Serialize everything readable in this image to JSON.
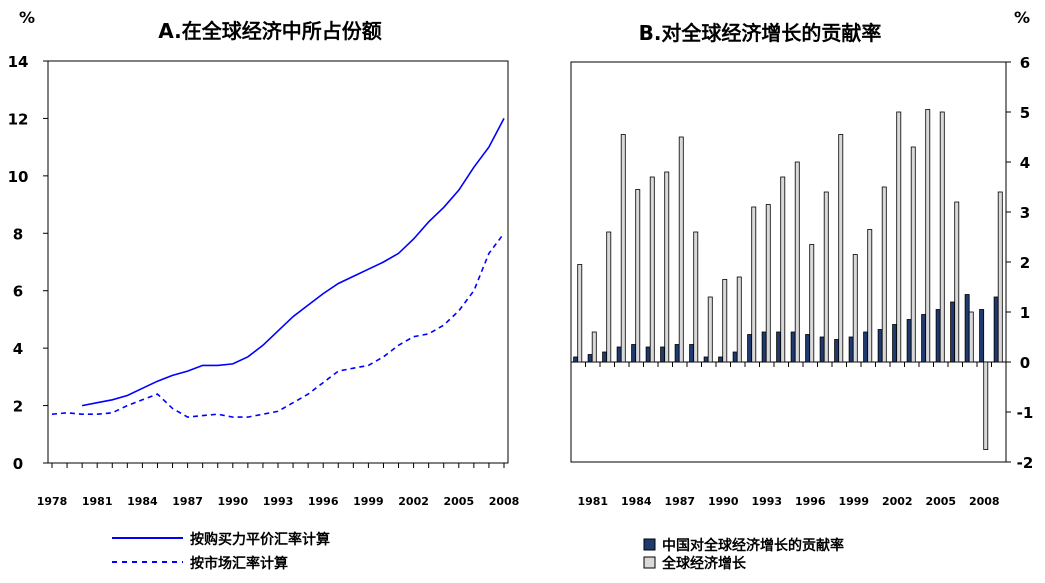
{
  "chart_data": [
    {
      "type": "line",
      "title": "A.在全球经济中所占份额",
      "ylabel": "%",
      "ylim": [
        0,
        14
      ],
      "yticks": [
        "0",
        "2",
        "4",
        "6",
        "8",
        "10",
        "12",
        "14"
      ],
      "xlim": [
        1978,
        2008
      ],
      "xticks": [
        "1978",
        "1981",
        "1984",
        "1987",
        "1990",
        "1993",
        "1996",
        "1999",
        "2002",
        "2005",
        "2008"
      ],
      "series": [
        {
          "name": "按购买力平价汇率计算",
          "style": "solid",
          "color": "#0000ff",
          "x": [
            1980,
            1981,
            1982,
            1983,
            1984,
            1985,
            1986,
            1987,
            1988,
            1989,
            1990,
            1991,
            1992,
            1993,
            1994,
            1995,
            1996,
            1997,
            1998,
            1999,
            2000,
            2001,
            2002,
            2003,
            2004,
            2005,
            2006,
            2007,
            2008
          ],
          "y": [
            2.0,
            2.1,
            2.2,
            2.35,
            2.6,
            2.85,
            3.05,
            3.2,
            3.4,
            3.4,
            3.45,
            3.7,
            4.1,
            4.6,
            5.1,
            5.5,
            5.9,
            6.25,
            6.5,
            6.75,
            7.0,
            7.3,
            7.8,
            8.4,
            8.9,
            9.5,
            10.3,
            11.0,
            12.0
          ]
        },
        {
          "name": "按市场汇率计算",
          "style": "dashed",
          "color": "#0000ff",
          "x": [
            1978,
            1979,
            1980,
            1981,
            1982,
            1983,
            1984,
            1985,
            1986,
            1987,
            1988,
            1989,
            1990,
            1991,
            1992,
            1993,
            1994,
            1995,
            1996,
            1997,
            1998,
            1999,
            2000,
            2001,
            2002,
            2003,
            2004,
            2005,
            2006,
            2007,
            2008
          ],
          "y": [
            1.7,
            1.75,
            1.7,
            1.7,
            1.75,
            2.0,
            2.2,
            2.4,
            1.9,
            1.6,
            1.65,
            1.7,
            1.6,
            1.6,
            1.7,
            1.8,
            2.1,
            2.4,
            2.8,
            3.2,
            3.3,
            3.4,
            3.7,
            4.1,
            4.4,
            4.5,
            4.8,
            5.3,
            6.0,
            7.3,
            8.0
          ]
        }
      ]
    },
    {
      "type": "bar",
      "title": "B.对全球经济增长的贡献率",
      "ylabel": "%",
      "ylim": [
        -2,
        6
      ],
      "yticks": [
        "6",
        "5",
        "4",
        "3",
        "2",
        "1",
        "0",
        "-1",
        "-2"
      ],
      "xticks": [
        "1981",
        "1984",
        "1987",
        "1990",
        "1993",
        "1996",
        "1999",
        "2002",
        "2005",
        "2008"
      ],
      "categories": [
        1980,
        1981,
        1982,
        1983,
        1984,
        1985,
        1986,
        1987,
        1988,
        1989,
        1990,
        1991,
        1992,
        1993,
        1994,
        1995,
        1996,
        1997,
        1998,
        1999,
        2000,
        2001,
        2002,
        2003,
        2004,
        2005,
        2006,
        2007,
        2008,
        2009
      ],
      "series": [
        {
          "name": "中国对全球经济增长的贡献率",
          "color": "#1f3a6e",
          "values": [
            0.1,
            0.15,
            0.2,
            0.3,
            0.35,
            0.3,
            0.3,
            0.35,
            0.35,
            0.1,
            0.1,
            0.2,
            0.55,
            0.6,
            0.6,
            0.6,
            0.55,
            0.5,
            0.45,
            0.5,
            0.6,
            0.65,
            0.75,
            0.85,
            0.95,
            1.05,
            1.2,
            1.35,
            1.05,
            1.3
          ]
        },
        {
          "name": "全球经济增长",
          "color": "#d9d9d9",
          "values": [
            1.95,
            0.6,
            2.6,
            4.55,
            3.45,
            3.7,
            3.8,
            4.5,
            2.6,
            1.3,
            1.65,
            1.7,
            3.1,
            3.15,
            3.7,
            4.0,
            2.35,
            3.4,
            4.55,
            2.15,
            2.65,
            3.5,
            5.0,
            4.3,
            5.05,
            5.0,
            3.2,
            1.0,
            -1.75,
            3.4
          ]
        }
      ]
    }
  ],
  "panelA": {
    "unit": "%",
    "title": "A.在全球经济中所占份额",
    "legend": [
      "按购买力平价汇率计算",
      "按市场汇率计算"
    ]
  },
  "panelB": {
    "unit": "%",
    "title": "B.对全球经济增长的贡献率",
    "legend": [
      "中国对全球经济增长的贡献率",
      "全球经济增长"
    ]
  }
}
